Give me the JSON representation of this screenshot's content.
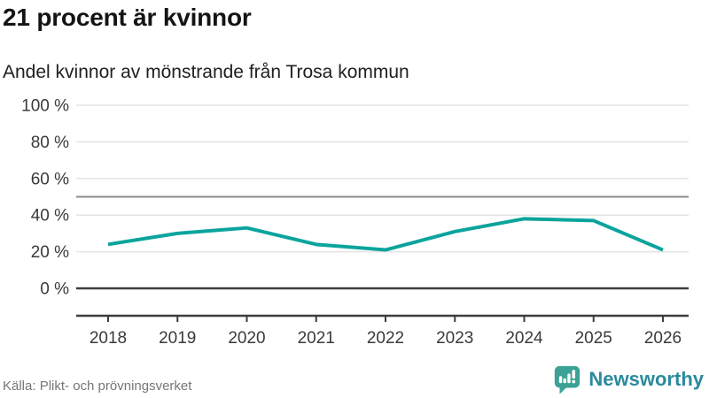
{
  "header": {
    "title": "21 procent är kvinnor",
    "subtitle": "Andel kvinnor av mönstrande från Trosa kommun"
  },
  "chart_data": {
    "type": "line",
    "title": "21 procent är kvinnor",
    "subtitle": "Andel kvinnor av mönstrande från Trosa kommun",
    "x": [
      2018,
      2019,
      2020,
      2021,
      2022,
      2023,
      2024,
      2025,
      2026
    ],
    "series": [
      {
        "name": "Andel kvinnor av mönstrande (%)",
        "values": [
          24,
          30,
          33,
          24,
          21,
          31,
          38,
          37,
          21
        ],
        "color": "#0ba49c"
      }
    ],
    "ylim": [
      0,
      100
    ],
    "y_ticks": [
      {
        "value": 0,
        "label": "0 %"
      },
      {
        "value": 20,
        "label": "20 %"
      },
      {
        "value": 40,
        "label": "40 %"
      },
      {
        "value": 60,
        "label": "60 %"
      },
      {
        "value": 80,
        "label": "80 %"
      },
      {
        "value": 100,
        "label": "100 %"
      }
    ],
    "reference_line": 50,
    "grid": true,
    "legend": false,
    "unit": "%"
  },
  "colors": {
    "line": "#0ba49c",
    "grid": "#e3e3e3",
    "reference": "#8b8b8b",
    "axis": "#3d3d3d",
    "tick_text": "#3a3a3a",
    "brand_icon": "#3ba295",
    "brand_text": "#2b8a9d"
  },
  "footer": {
    "source": "Källa: Plikt- och prövningsverket",
    "brand": "Newsworthy"
  }
}
